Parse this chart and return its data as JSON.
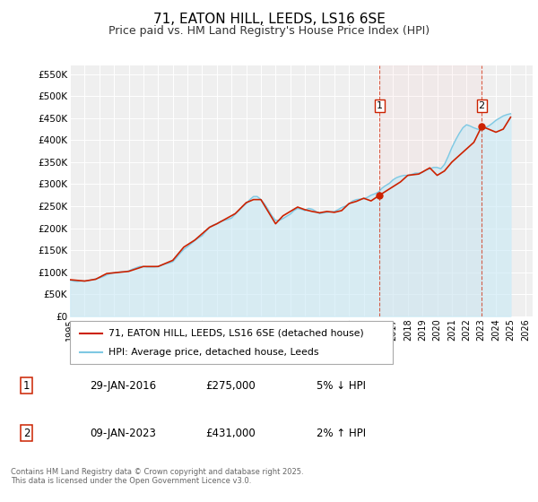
{
  "title": "71, EATON HILL, LEEDS, LS16 6SE",
  "subtitle": "Price paid vs. HM Land Registry's House Price Index (HPI)",
  "title_fontsize": 11,
  "subtitle_fontsize": 9,
  "background_color": "#ffffff",
  "plot_bg_color": "#efefef",
  "grid_color": "#ffffff",
  "ylim": [
    0,
    570000
  ],
  "yticks": [
    0,
    50000,
    100000,
    150000,
    200000,
    250000,
    300000,
    350000,
    400000,
    450000,
    500000,
    550000
  ],
  "ytick_labels": [
    "£0",
    "£50K",
    "£100K",
    "£150K",
    "£200K",
    "£250K",
    "£300K",
    "£350K",
    "£400K",
    "£450K",
    "£500K",
    "£550K"
  ],
  "xlim_start": 1995.0,
  "xlim_end": 2026.5,
  "xticks": [
    1995,
    1996,
    1997,
    1998,
    1999,
    2000,
    2001,
    2002,
    2003,
    2004,
    2005,
    2006,
    2007,
    2008,
    2009,
    2010,
    2011,
    2012,
    2013,
    2014,
    2015,
    2016,
    2017,
    2018,
    2019,
    2020,
    2021,
    2022,
    2023,
    2024,
    2025,
    2026
  ],
  "hpi_color": "#7ec8e3",
  "hpi_fill_color": "#c5e8f5",
  "price_color": "#cc2200",
  "marker_color": "#cc2200",
  "vline1_x": 2016.08,
  "vline2_x": 2023.03,
  "vline_color": "#cc2200",
  "marker1_x": 2016.08,
  "marker1_y": 275000,
  "marker2_x": 2023.03,
  "marker2_y": 431000,
  "legend_label_price": "71, EATON HILL, LEEDS, LS16 6SE (detached house)",
  "legend_label_hpi": "HPI: Average price, detached house, Leeds",
  "table_row1": [
    "1",
    "29-JAN-2016",
    "£275,000",
    "5% ↓ HPI"
  ],
  "table_row2": [
    "2",
    "09-JAN-2023",
    "£431,000",
    "2% ↑ HPI"
  ],
  "footer_text": "Contains HM Land Registry data © Crown copyright and database right 2025.\nThis data is licensed under the Open Government Licence v3.0.",
  "hpi_data": {
    "years": [
      1995.0,
      1995.25,
      1995.5,
      1995.75,
      1996.0,
      1996.25,
      1996.5,
      1996.75,
      1997.0,
      1997.25,
      1997.5,
      1997.75,
      1998.0,
      1998.25,
      1998.5,
      1998.75,
      1999.0,
      1999.25,
      1999.5,
      1999.75,
      2000.0,
      2000.25,
      2000.5,
      2000.75,
      2001.0,
      2001.25,
      2001.5,
      2001.75,
      2002.0,
      2002.25,
      2002.5,
      2002.75,
      2003.0,
      2003.25,
      2003.5,
      2003.75,
      2004.0,
      2004.25,
      2004.5,
      2004.75,
      2005.0,
      2005.25,
      2005.5,
      2005.75,
      2006.0,
      2006.25,
      2006.5,
      2006.75,
      2007.0,
      2007.25,
      2007.5,
      2007.75,
      2008.0,
      2008.25,
      2008.5,
      2008.75,
      2009.0,
      2009.25,
      2009.5,
      2009.75,
      2010.0,
      2010.25,
      2010.5,
      2010.75,
      2011.0,
      2011.25,
      2011.5,
      2011.75,
      2012.0,
      2012.25,
      2012.5,
      2012.75,
      2013.0,
      2013.25,
      2013.5,
      2013.75,
      2014.0,
      2014.25,
      2014.5,
      2014.75,
      2015.0,
      2015.25,
      2015.5,
      2015.75,
      2016.0,
      2016.25,
      2016.5,
      2016.75,
      2017.0,
      2017.25,
      2017.5,
      2017.75,
      2018.0,
      2018.25,
      2018.5,
      2018.75,
      2019.0,
      2019.25,
      2019.5,
      2019.75,
      2020.0,
      2020.25,
      2020.5,
      2020.75,
      2021.0,
      2021.25,
      2021.5,
      2021.75,
      2022.0,
      2022.25,
      2022.5,
      2022.75,
      2023.0,
      2023.25,
      2023.5,
      2023.75,
      2024.0,
      2024.25,
      2024.5,
      2024.75,
      2025.0
    ],
    "values": [
      82000,
      80000,
      79000,
      80000,
      80000,
      81000,
      83000,
      85000,
      87000,
      90000,
      94000,
      97000,
      99000,
      100000,
      101000,
      101000,
      103000,
      107000,
      110000,
      113000,
      113000,
      112000,
      112000,
      112000,
      113000,
      116000,
      119000,
      121000,
      124000,
      133000,
      143000,
      152000,
      158000,
      165000,
      172000,
      178000,
      183000,
      193000,
      202000,
      207000,
      210000,
      215000,
      218000,
      220000,
      223000,
      232000,
      240000,
      249000,
      256000,
      265000,
      272000,
      272000,
      265000,
      255000,
      242000,
      228000,
      218000,
      218000,
      222000,
      227000,
      232000,
      240000,
      245000,
      243000,
      240000,
      245000,
      243000,
      238000,
      233000,
      235000,
      236000,
      237000,
      238000,
      242000,
      247000,
      250000,
      255000,
      262000,
      265000,
      266000,
      267000,
      270000,
      275000,
      278000,
      282000,
      291000,
      297000,
      302000,
      310000,
      315000,
      318000,
      320000,
      320000,
      322000,
      325000,
      325000,
      327000,
      332000,
      335000,
      338000,
      338000,
      335000,
      345000,
      363000,
      383000,
      400000,
      415000,
      428000,
      435000,
      432000,
      428000,
      425000,
      423000,
      428000,
      432000,
      438000,
      445000,
      450000,
      455000,
      458000,
      460000
    ]
  },
  "price_data": {
    "years": [
      1995.0,
      1996.0,
      1996.75,
      1997.5,
      1999.0,
      2000.0,
      2001.0,
      2002.0,
      2002.75,
      2003.5,
      2004.5,
      2005.0,
      2006.25,
      2007.0,
      2007.5,
      2008.0,
      2009.0,
      2009.5,
      2010.5,
      2011.0,
      2011.5,
      2012.0,
      2012.5,
      2013.0,
      2013.5,
      2014.0,
      2014.5,
      2015.0,
      2015.5,
      2016.08,
      2017.5,
      2018.0,
      2018.75,
      2019.5,
      2020.0,
      2020.5,
      2021.0,
      2021.5,
      2022.0,
      2022.5,
      2023.03,
      2023.5,
      2024.0,
      2024.5,
      2025.0
    ],
    "values": [
      83000,
      80000,
      84000,
      97000,
      102000,
      113000,
      113000,
      127000,
      157000,
      173000,
      202000,
      210000,
      233000,
      258000,
      265000,
      265000,
      210000,
      228000,
      248000,
      242000,
      238000,
      235000,
      238000,
      236000,
      240000,
      256000,
      261000,
      268000,
      262000,
      275000,
      305000,
      320000,
      323000,
      337000,
      320000,
      330000,
      350000,
      365000,
      380000,
      395000,
      431000,
      425000,
      418000,
      425000,
      452000
    ]
  }
}
